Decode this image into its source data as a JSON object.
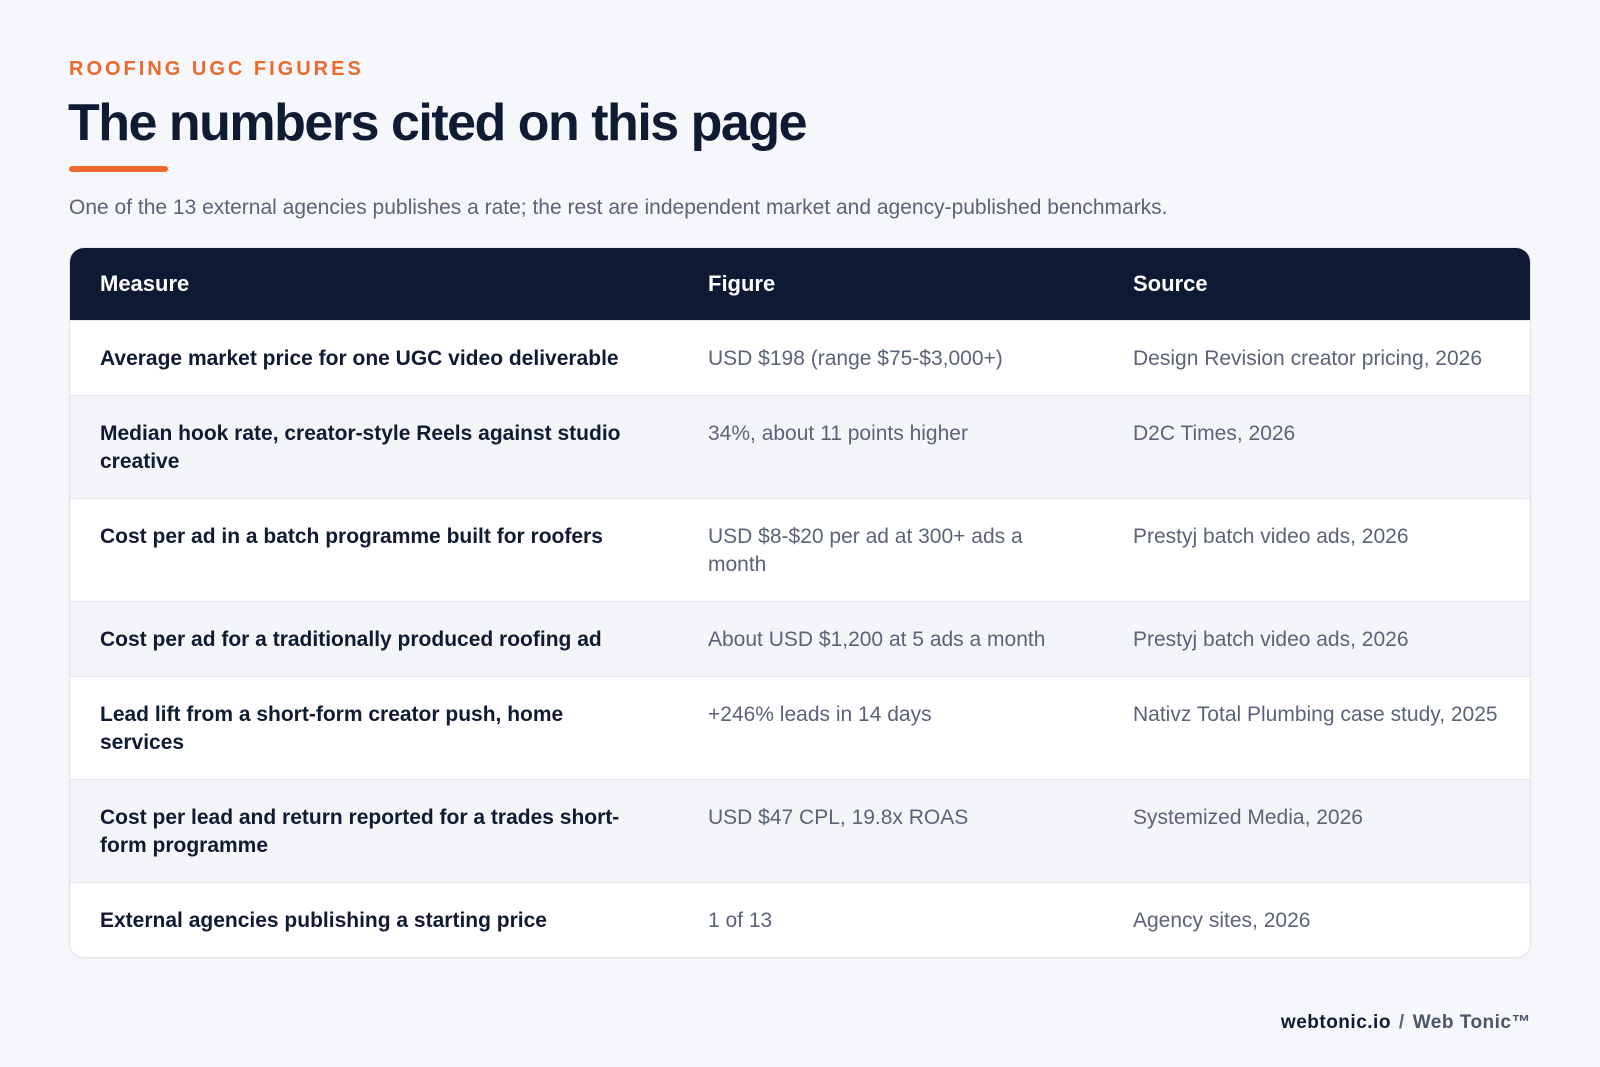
{
  "header": {
    "eyebrow": "ROOFING UGC FIGURES",
    "title": "The numbers cited on this page",
    "subtitle": "One of the 13 external agencies publishes a rate; the rest are independent market and agency-published benchmarks."
  },
  "table": {
    "columns": [
      "Measure",
      "Figure",
      "Source"
    ],
    "rows": [
      {
        "measure": "Average market price for one UGC video deliverable",
        "figure": "USD $198 (range $75-$3,000+)",
        "source": "Design Revision creator pricing, 2026"
      },
      {
        "measure": "Median hook rate, creator-style Reels against studio creative",
        "figure": "34%, about 11 points higher",
        "source": "D2C Times, 2026"
      },
      {
        "measure": "Cost per ad in a batch programme built for roofers",
        "figure": "USD $8-$20 per ad at 300+ ads a month",
        "source": "Prestyj batch video ads, 2026"
      },
      {
        "measure": "Cost per ad for a traditionally produced roofing ad",
        "figure": "About USD $1,200 at 5 ads a month",
        "source": "Prestyj batch video ads, 2026"
      },
      {
        "measure": "Lead lift from a short-form creator push, home services",
        "figure": "+246% leads in 14 days",
        "source": "Nativz Total Plumbing case study, 2025"
      },
      {
        "measure": "Cost per lead and return reported for a trades short-form programme",
        "figure": "USD $47 CPL, 19.8x ROAS",
        "source": "Systemized Media, 2026"
      },
      {
        "measure": "External agencies publishing a starting price",
        "figure": "1 of 13",
        "source": "Agency sites, 2026"
      }
    ]
  },
  "footer": {
    "domain": "webtonic.io",
    "separator": "/",
    "brand": "Web Tonic™"
  },
  "colors": {
    "accent": "#ec6a2c",
    "header_bg": "#0e1a33",
    "page_bg": "#f5f7fa"
  }
}
